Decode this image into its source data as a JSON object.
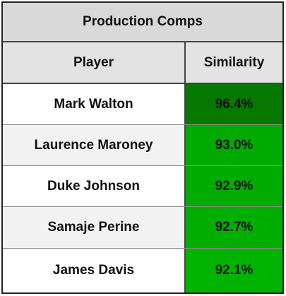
{
  "table": {
    "title": "Production Comps",
    "headers": {
      "player": "Player",
      "similarity": "Similarity"
    },
    "rows": [
      {
        "player": "Mark Walton",
        "similarity": "96.4%",
        "player_bg": "#ffffff",
        "sim_bg": "#057800"
      },
      {
        "player": "Laurence Maroney",
        "similarity": "93.0%",
        "player_bg": "#f2f2f2",
        "sim_bg": "#00aa00"
      },
      {
        "player": "Duke Johnson",
        "similarity": "92.9%",
        "player_bg": "#ffffff",
        "sim_bg": "#00ac00"
      },
      {
        "player": "Samaje Perine",
        "similarity": "92.7%",
        "player_bg": "#f2f2f2",
        "sim_bg": "#00ae00"
      },
      {
        "player": "James Davis",
        "similarity": "92.1%",
        "player_bg": "#ffffff",
        "sim_bg": "#00b300"
      }
    ]
  }
}
